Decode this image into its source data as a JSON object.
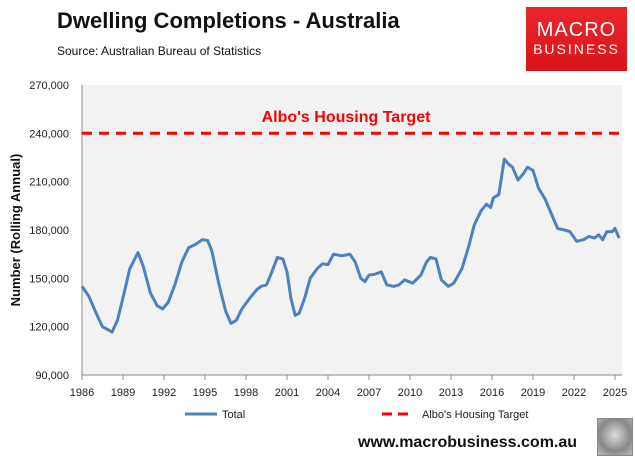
{
  "header": {
    "title": "Dwelling Completions - Australia",
    "source": "Source: Australian Bureau of Statistics"
  },
  "logo": {
    "line1": "MACRO",
    "line2": "BUSINESS"
  },
  "footer": {
    "url": "www.macrobusiness.com.au"
  },
  "colors": {
    "total": "#4f81bd",
    "target": "#ff0000",
    "plot_bg": "#f2f2f2"
  },
  "chart_data": {
    "type": "line",
    "title": "Dwelling Completions - Australia",
    "xlabel": "",
    "ylabel": "Number (Rolling Annual)",
    "xlim": [
      1986,
      2025.8
    ],
    "ylim": [
      90000,
      270000
    ],
    "x_ticks": [
      1986,
      1989,
      1992,
      1995,
      1998,
      2001,
      2004,
      2007,
      2010,
      2013,
      2016,
      2019,
      2022,
      2025
    ],
    "y_ticks": [
      90000,
      120000,
      150000,
      180000,
      210000,
      240000,
      270000
    ],
    "y_tick_labels": [
      "90,000",
      "120,000",
      "150,000",
      "180,000",
      "210,000",
      "240,000",
      "270,000"
    ],
    "legend": {
      "position": "bottom",
      "entries": [
        "Total",
        "Albo's Housing Target"
      ]
    },
    "annotation": "Albo's Housing Target",
    "series": [
      {
        "name": "Total",
        "x": [
          1986,
          1986.5,
          1987,
          1987.5,
          1988.2,
          1988.6,
          1989,
          1989.5,
          1990.1,
          1990.5,
          1991,
          1991.5,
          1991.9,
          1992.3,
          1992.8,
          1993.3,
          1993.8,
          1994.3,
          1994.8,
          1995.2,
          1995.5,
          1996,
          1996.5,
          1996.9,
          1997.3,
          1997.7,
          1998.3,
          1998.8,
          1999.1,
          1999.5,
          1999.8,
          2000.3,
          2000.7,
          2001,
          2001.3,
          2001.6,
          2001.9,
          2002.3,
          2002.7,
          2003.2,
          2003.6,
          2004,
          2004.4,
          2005,
          2005.6,
          2006,
          2006.4,
          2006.7,
          2007,
          2007.4,
          2007.9,
          2008.3,
          2008.8,
          2009.2,
          2009.6,
          2010.2,
          2010.8,
          2011.2,
          2011.5,
          2011.9,
          2012.3,
          2012.8,
          2013.2,
          2013.8,
          2014.3,
          2014.7,
          2015.2,
          2015.6,
          2015.9,
          2016.1,
          2016.5,
          2016.9,
          2017.2,
          2017.5,
          2017.9,
          2018.3,
          2018.6,
          2019,
          2019.4,
          2019.9,
          2020.4,
          2020.8,
          2021.3,
          2021.7,
          2022.2,
          2022.7,
          2023.1,
          2023.5,
          2023.8,
          2024.1,
          2024.4,
          2024.8,
          2025,
          2025.3
        ],
        "values": [
          145000,
          139000,
          129000,
          120000,
          116700,
          124000,
          138000,
          156000,
          166000,
          157000,
          141000,
          133000,
          131000,
          135000,
          146000,
          160000,
          169000,
          171000,
          174000,
          173500,
          167000,
          147000,
          130000,
          122000,
          124000,
          131000,
          138000,
          143000,
          145000,
          146000,
          152000,
          163000,
          162000,
          154000,
          137000,
          127000,
          128500,
          138000,
          150000,
          156000,
          159000,
          158500,
          165000,
          164000,
          165000,
          160000,
          150000,
          148000,
          152000,
          152500,
          154000,
          146000,
          145000,
          146000,
          149000,
          147000,
          152000,
          160000,
          163000,
          162000,
          149000,
          145000,
          147000,
          156000,
          170000,
          183000,
          192000,
          196000,
          194000,
          200000,
          202000,
          224000,
          221000,
          219000,
          211000,
          215000,
          219000,
          217000,
          206000,
          199000,
          189000,
          181000,
          180000,
          179000,
          173000,
          174000,
          176000,
          175000,
          177000,
          174000,
          179000,
          179000,
          181000,
          175000
        ]
      },
      {
        "name": "Albo's Housing Target",
        "x": [
          1986,
          2025.3
        ],
        "values": [
          240000,
          240000
        ],
        "style": "dashed"
      }
    ]
  }
}
